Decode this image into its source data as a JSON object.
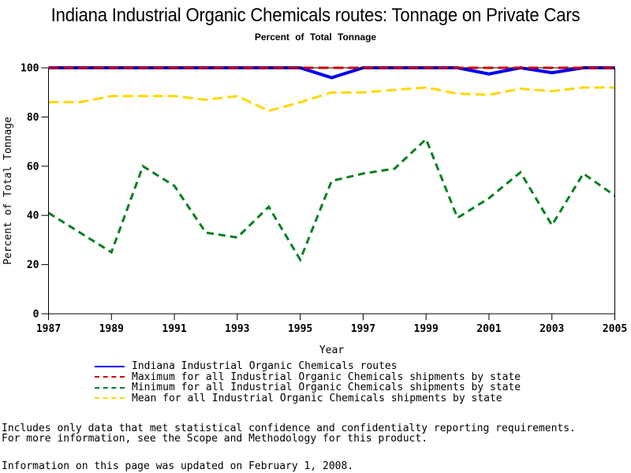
{
  "page": {
    "title": "Indiana Industrial Organic Chemicals routes: Tonnage on Private Cars",
    "subtitle": "Percent of Total Tonnage"
  },
  "chart_data": {
    "type": "line",
    "title": "Indiana Industrial Organic Chemicals routes: Tonnage on Private Cars",
    "subtitle": "Percent of Total Tonnage",
    "xlabel": "Year",
    "ylabel": "Percent of Total Tonnage",
    "xlim": [
      1987,
      2005
    ],
    "ylim": [
      0,
      100
    ],
    "xticks": [
      1987,
      1989,
      1991,
      1993,
      1995,
      1997,
      1999,
      2001,
      2003,
      2005
    ],
    "yticks": [
      0,
      20,
      40,
      60,
      80,
      100
    ],
    "grid": false,
    "legend_position": "bottom-left",
    "x": [
      1987,
      1988,
      1989,
      1990,
      1991,
      1992,
      1993,
      1994,
      1995,
      1996,
      1997,
      1998,
      1999,
      2000,
      2001,
      2002,
      2003,
      2004,
      2005
    ],
    "series": [
      {
        "name": "Indiana Industrial Organic Chemicals routes",
        "color": "#0000EE",
        "line_style": "solid",
        "values": [
          100,
          100,
          100,
          100,
          100,
          100,
          100,
          100,
          100,
          96,
          100,
          100,
          100,
          100,
          97.5,
          100,
          98,
          100,
          100
        ]
      },
      {
        "name": "Maximum for all Industrial Organic Chemicals shipments by state",
        "color": "#CC0000",
        "line_style": "dashed",
        "values": [
          100,
          100,
          100,
          100,
          100,
          100,
          100,
          100,
          100,
          100,
          100,
          100,
          100,
          100,
          100,
          100,
          100,
          100,
          100
        ]
      },
      {
        "name": "Minimum for all Industrial Organic Chemicals shipments by state",
        "color": "#008020",
        "line_style": "dashed",
        "values": [
          41,
          33,
          25,
          60,
          52,
          33,
          31,
          43.5,
          22,
          54,
          57,
          59,
          71,
          39,
          47,
          57.5,
          36,
          57,
          48
        ]
      },
      {
        "name": "Mean for all Industrial Organic Chemicals shipments by state",
        "color": "#FFD700",
        "line_style": "dashed",
        "values": [
          86,
          86,
          88.5,
          88.5,
          88.5,
          87,
          88.5,
          82.5,
          86,
          90,
          90,
          91,
          92,
          89.5,
          89,
          91.5,
          90.5,
          92,
          92
        ]
      }
    ]
  },
  "footer": {
    "line1": "Includes only data that met statistical confidence and confidentialty reporting requirements.",
    "line2": "For more information, see the Scope and Methodology for this product.",
    "line3": "Information on this page was updated on February 1, 2008."
  }
}
